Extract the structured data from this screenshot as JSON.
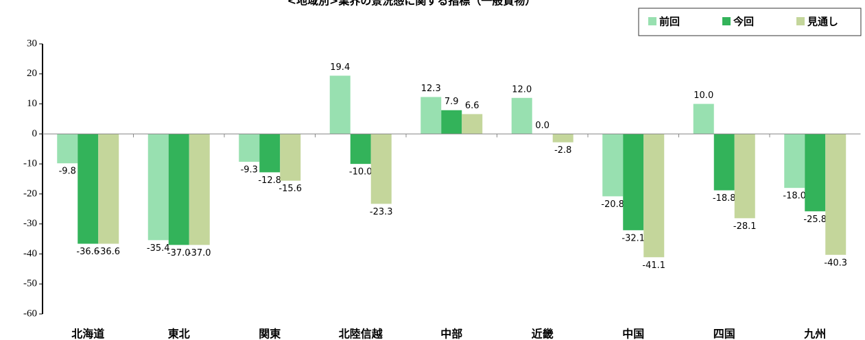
{
  "chart_data": {
    "type": "bar",
    "title": "<地域別>業界の景況感に関する指標（一般貨物）",
    "categories": [
      "北海道",
      "東北",
      "関東",
      "北陸信越",
      "中部",
      "近畿",
      "中国",
      "四国",
      "九州"
    ],
    "series": [
      {
        "name": "前回",
        "color": "#98e0b0",
        "values": [
          -9.8,
          -35.4,
          -9.3,
          19.4,
          12.3,
          12.0,
          -20.8,
          10.0,
          -18.0
        ],
        "value_labels": [
          "-9.8",
          "-35.4",
          "-9.3",
          "19.4",
          "12.3",
          "12.0",
          "-20.8",
          "10.0",
          "-18.0"
        ]
      },
      {
        "name": "今回",
        "color": "#33b35a",
        "values": [
          -36.6,
          -37.0,
          -12.8,
          -10.0,
          7.9,
          0.0,
          -32.1,
          -18.8,
          -25.8
        ],
        "value_labels": [
          "-36.6",
          "-37.0",
          "-12.8",
          "-10.0",
          "7.9",
          "0.0",
          "-32.1",
          "-18.8",
          "-25.8"
        ]
      },
      {
        "name": "見通し",
        "color": "#c4d69b",
        "values": [
          -36.6,
          -37.0,
          -15.6,
          -23.3,
          6.6,
          -2.8,
          -41.1,
          -28.1,
          -40.3
        ],
        "value_labels": [
          "-36.6",
          "-37.0",
          "-15.6",
          "-23.3",
          "6.6",
          "-2.8",
          "-41.1",
          "-28.1",
          "-40.3"
        ]
      }
    ],
    "ylim": [
      -60,
      30
    ],
    "yticks": [
      -60,
      -50,
      -40,
      -30,
      -20,
      -10,
      0,
      10,
      20,
      30
    ],
    "grid": false,
    "legend": "top-right"
  }
}
